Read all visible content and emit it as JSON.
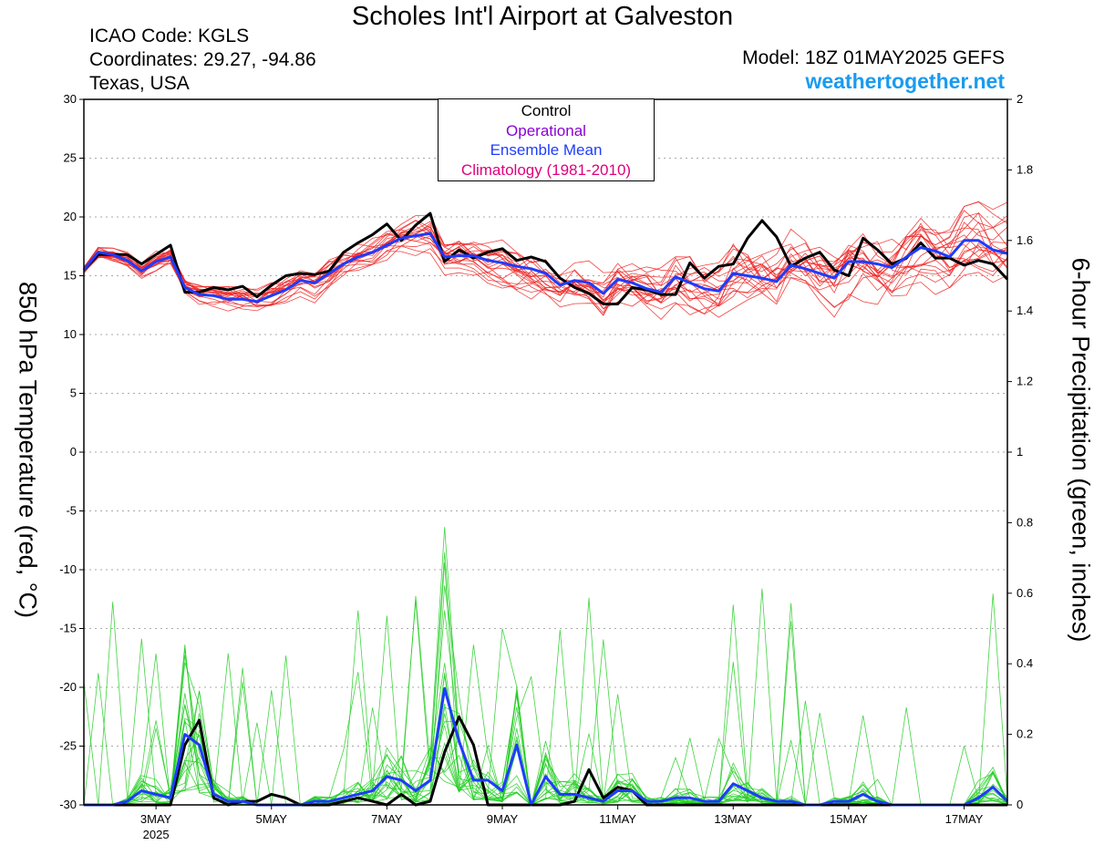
{
  "header": {
    "title": "Scholes Int'l Airport at Galveston",
    "icao": "ICAO Code: KGLS",
    "coordinates": "Coordinates: 29.27, -94.86",
    "location": "Texas, USA",
    "model": "Model: 18Z 01MAY2025 GEFS",
    "site": "weathertogether.net"
  },
  "legend": {
    "control": "Control",
    "operational": "Operational",
    "ensemble_mean": "Ensemble Mean",
    "climatology": "Climatology (1981-2010)"
  },
  "colors": {
    "control": "#000000",
    "operational": "#8a00d4",
    "ensemble_mean": "#1e3cff",
    "climatology": "#e0007a",
    "members_temp": "#ee2222",
    "members_precip": "#22cc22",
    "site": "#1a9bf0"
  },
  "chart_data": {
    "type": "line",
    "ylabel_left": "850 hPa Temperature (red, °C)",
    "ylabel_right": "6-hour Precipitation (green, inches)",
    "ylim_left": [
      -30,
      30
    ],
    "ylim_right": [
      0,
      2
    ],
    "yticks_left": [
      30,
      25,
      20,
      15,
      10,
      5,
      0,
      -5,
      -10,
      -15,
      -20,
      -25,
      -30
    ],
    "yticks_right": [
      "2",
      "1.8",
      "1.6",
      "1.4",
      "1.2",
      "1",
      "0.8",
      "0.6",
      "0.4",
      "0.2",
      "0"
    ],
    "xlim_day": [
      1.75,
      17.75
    ],
    "xticks": [
      {
        "day": 3,
        "label": "3MAY",
        "sublabel": "2025"
      },
      {
        "day": 5,
        "label": "5MAY",
        "sublabel": ""
      },
      {
        "day": 7,
        "label": "7MAY",
        "sublabel": ""
      },
      {
        "day": 9,
        "label": "9MAY",
        "sublabel": ""
      },
      {
        "day": 11,
        "label": "11MAY",
        "sublabel": ""
      },
      {
        "day": 13,
        "label": "13MAY",
        "sublabel": ""
      },
      {
        "day": 15,
        "label": "15MAY",
        "sublabel": ""
      },
      {
        "day": 17,
        "label": "17MAY",
        "sublabel": ""
      }
    ],
    "time_step_days": 0.25,
    "grid": "dotted horizontal",
    "series": [
      {
        "name": "Control",
        "axis": "temperature",
        "values": [
          15.5,
          16.8,
          16.8,
          16.8,
          16.0,
          16.8,
          17.6,
          13.6,
          13.6,
          14.0,
          13.8,
          14.1,
          13.2,
          14.2,
          15.0,
          15.2,
          15.1,
          15.4,
          17.0,
          17.8,
          18.5,
          19.4,
          18.0,
          19.3,
          20.3,
          16.2,
          17.2,
          16.5,
          17.0,
          17.3,
          16.3,
          16.6,
          16.2,
          14.8,
          14.0,
          13.5,
          12.6,
          12.6,
          14.0,
          13.8,
          13.4,
          13.4,
          16.1,
          14.8,
          15.8,
          16.0,
          18.2,
          19.7,
          18.3,
          15.8,
          16.5,
          17.0,
          15.5,
          15.0,
          18.2,
          17.2,
          16.0,
          16.5,
          17.8,
          16.5,
          16.5,
          15.9,
          16.3,
          16.0,
          14.7
        ]
      },
      {
        "name": "Ensemble Mean",
        "axis": "temperature",
        "values": [
          15.5,
          17.0,
          16.8,
          16.3,
          15.4,
          16.2,
          16.6,
          14.0,
          13.4,
          13.3,
          13.0,
          13.0,
          12.8,
          13.3,
          13.8,
          14.6,
          14.4,
          15.2,
          16.0,
          16.6,
          17.0,
          17.6,
          18.2,
          18.4,
          18.6,
          16.6,
          16.7,
          16.7,
          16.3,
          16.1,
          15.8,
          15.6,
          15.2,
          14.2,
          14.6,
          14.4,
          13.5,
          14.7,
          14.4,
          13.9,
          13.6,
          14.9,
          14.4,
          13.9,
          13.7,
          15.2,
          15.0,
          14.8,
          14.5,
          15.9,
          15.6,
          15.2,
          14.8,
          16.2,
          16.2,
          16.0,
          15.7,
          16.6,
          17.4,
          17.1,
          16.6,
          18.0,
          18.0,
          17.2,
          16.9
        ]
      },
      {
        "name": "Control",
        "axis": "precipitation",
        "values": [
          0,
          0,
          0,
          0,
          0,
          0,
          0,
          0.17,
          0.24,
          0.02,
          0,
          0.01,
          0.01,
          0.03,
          0.02,
          0,
          0,
          0,
          0.01,
          0.02,
          0.01,
          0,
          0.03,
          0,
          0.01,
          0.15,
          0.25,
          0.17,
          0,
          0,
          0,
          0,
          0,
          0,
          0.01,
          0.1,
          0.02,
          0.05,
          0.04,
          0,
          0,
          0,
          0,
          0,
          0,
          0,
          0,
          0,
          0,
          0,
          0,
          0,
          0,
          0,
          0,
          0,
          0,
          0,
          0,
          0,
          0,
          0,
          0,
          0,
          0
        ]
      },
      {
        "name": "Ensemble Mean",
        "axis": "precipitation",
        "values": [
          0,
          0,
          0,
          0.01,
          0.04,
          0.03,
          0.02,
          0.2,
          0.17,
          0.03,
          0.01,
          0.01,
          0,
          0,
          0,
          0,
          0.01,
          0.01,
          0.02,
          0.03,
          0.04,
          0.08,
          0.07,
          0.04,
          0.07,
          0.33,
          0.18,
          0.07,
          0.07,
          0.04,
          0.17,
          0,
          0.08,
          0.03,
          0.03,
          0.02,
          0.01,
          0.04,
          0.04,
          0.01,
          0.01,
          0.02,
          0.02,
          0.01,
          0.01,
          0.06,
          0.04,
          0.02,
          0.01,
          0.01,
          0,
          0,
          0.01,
          0.01,
          0.03,
          0.01,
          0,
          0,
          0,
          0,
          0,
          0,
          0.02,
          0.05,
          0.01
        ]
      }
    ]
  }
}
